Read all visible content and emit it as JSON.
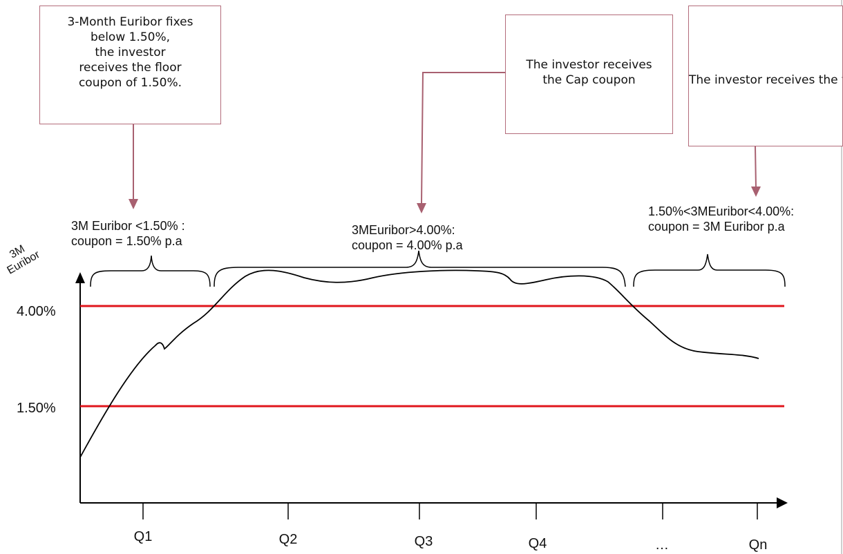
{
  "callouts": {
    "floor": "3-Month Euribor fixes\nbelow 1.50%,\nthe investor\nreceives the floor\ncoupon of 1.50%.",
    "cap": "The investor receives\nthe Cap coupon",
    "floating": "The investor receives\nthe floating coupon"
  },
  "regions": {
    "floor": "3M Euribor <1.50% :\ncoupon = 1.50% p.a",
    "cap": "3MEuribor>4.00%:\ncoupon = 4.00% p.a",
    "floating": "1.50%<3MEuribor<4.00%:\ncoupon = 3M Euribor p.a"
  },
  "axes": {
    "y_title": "3M\nEuribor",
    "y_ticks": [
      "4.00%",
      "1.50%"
    ],
    "x_ticks": [
      "Q1",
      "Q2",
      "Q3",
      "Q4",
      "…",
      "Qn"
    ]
  },
  "colors": {
    "threshold_lines": "#e0161c",
    "callout_border": "#b36b7a",
    "arrows": "#a86070",
    "curve": "#000000"
  }
}
